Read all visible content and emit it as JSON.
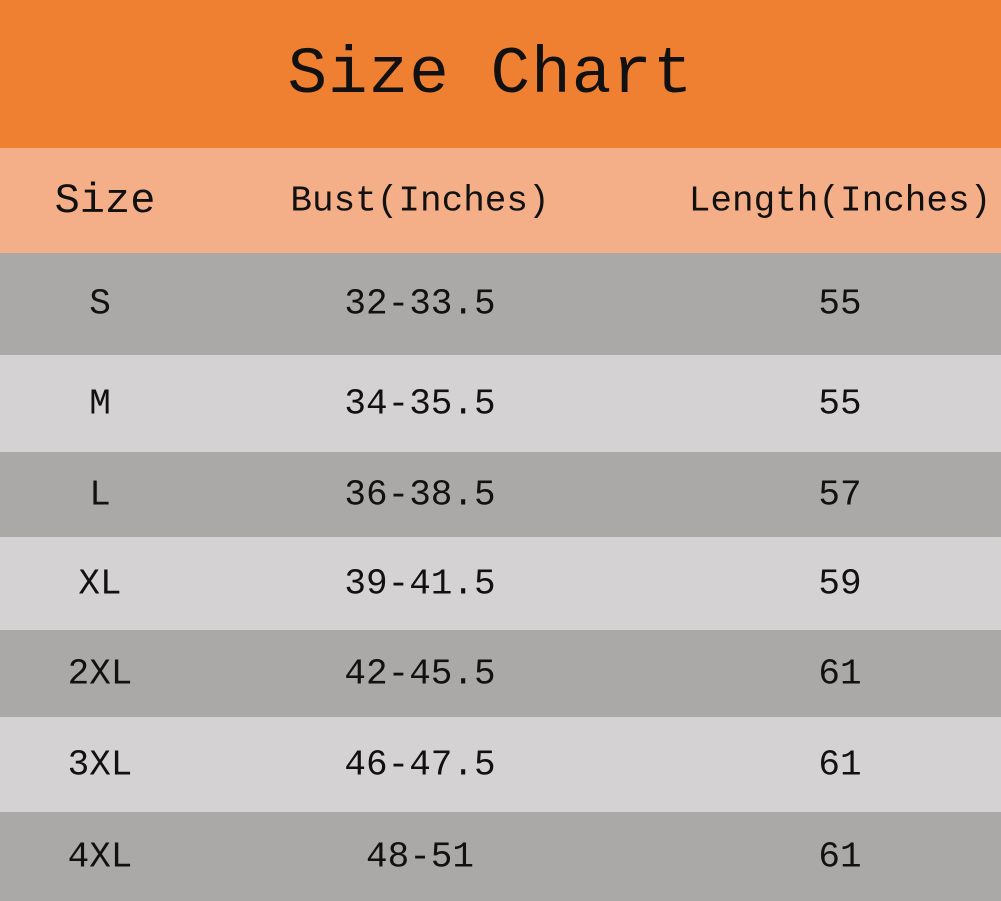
{
  "title": "Size Chart",
  "colors": {
    "title_bg": "#ef7f31",
    "header_bg": "#f5af88",
    "row_dark": "#aba8a8",
    "row_light": "#d4d2d3"
  },
  "chart_data": {
    "type": "table",
    "title": "Size Chart",
    "columns": [
      "Size",
      "Bust(Inches)",
      "Length(Inches)"
    ],
    "rows": [
      [
        "S",
        "32-33.5",
        "55"
      ],
      [
        "M",
        "34-35.5",
        "55"
      ],
      [
        "L",
        "36-38.5",
        "57"
      ],
      [
        "XL",
        "39-41.5",
        "59"
      ],
      [
        "2XL",
        "42-45.5",
        "61"
      ],
      [
        "3XL",
        "46-47.5",
        "61"
      ],
      [
        "4XL",
        "48-51",
        "61"
      ]
    ]
  }
}
